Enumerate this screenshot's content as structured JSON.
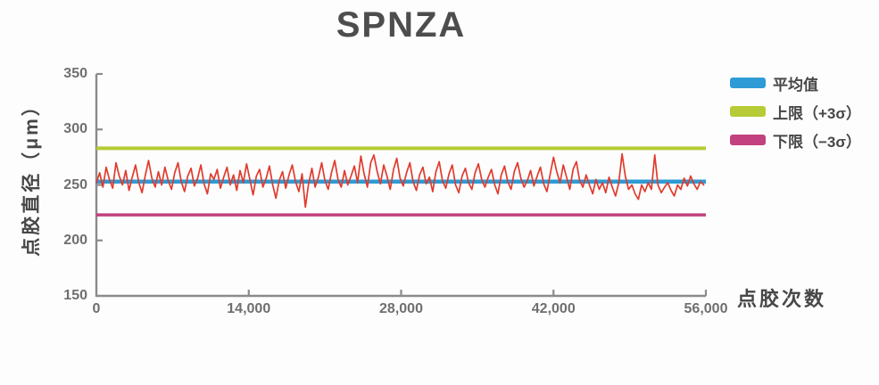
{
  "title": "SPNZA",
  "colors": {
    "mean_line": "#2d9bd5",
    "upper_line": "#b6cb35",
    "lower_line": "#c2417e",
    "data_line": "#e03b2d",
    "axis": "#8b8b8b",
    "tick_text": "#6f6f6f",
    "label_text": "#474747",
    "background": "#fdfdfd"
  },
  "legend": {
    "items": [
      {
        "label": "平均值",
        "color": "#2d9bd5"
      },
      {
        "label": "上限（+3σ）",
        "color": "#b6cb35"
      },
      {
        "label": "下限（−3σ）",
        "color": "#c2417e"
      }
    ]
  },
  "chart_data": {
    "type": "line",
    "title": "SPNZA",
    "ylabel": "点胶直径（μm）",
    "xlabel": "点胶次数",
    "ylim": [
      150,
      350
    ],
    "xlim": [
      0,
      56000
    ],
    "y_ticks": [
      150,
      200,
      250,
      300,
      350
    ],
    "y_tick_labels": [
      "150",
      "200",
      "250",
      "300",
      "350"
    ],
    "x_ticks": [
      0,
      14000,
      28000,
      42000,
      56000
    ],
    "x_tick_labels": [
      "0",
      "14,000",
      "28,000",
      "42,000",
      "56,000"
    ],
    "grid": false,
    "legend_position": "right",
    "reference_lines": [
      {
        "name": "平均值",
        "value": 253,
        "color": "#2d9bd5"
      },
      {
        "name": "上限（+3σ）",
        "value": 283,
        "color": "#b6cb35"
      },
      {
        "name": "下限（−3σ）",
        "value": 223,
        "color": "#c2417e"
      }
    ],
    "series": [
      {
        "name": "点胶直径",
        "color": "#e03b2d",
        "x_start": 0,
        "x_step": 300,
        "values": [
          252,
          261,
          248,
          266,
          255,
          247,
          270,
          258,
          250,
          263,
          245,
          257,
          268,
          252,
          243,
          259,
          272,
          256,
          248,
          262,
          250,
          266,
          254,
          246,
          261,
          270,
          253,
          244,
          258,
          265,
          249,
          256,
          268,
          251,
          242,
          260,
          255,
          264,
          247,
          257,
          266,
          250,
          259,
          245,
          263,
          252,
          269,
          255,
          241,
          258,
          264,
          248,
          256,
          267,
          250,
          238,
          254,
          262,
          247,
          259,
          268,
          253,
          244,
          260,
          230,
          251,
          265,
          248,
          257,
          270,
          254,
          246,
          261,
          272,
          255,
          248,
          263,
          250,
          258,
          267,
          252,
          276,
          260,
          248,
          270,
          277,
          262,
          251,
          268,
          258,
          246,
          264,
          274,
          256,
          249,
          261,
          270,
          253,
          245,
          259,
          266,
          251,
          257,
          244,
          262,
          271,
          254,
          247,
          260,
          268,
          250,
          243,
          258,
          265,
          252,
          246,
          261,
          269,
          255,
          248,
          257,
          264,
          250,
          242,
          259,
          267,
          253,
          246,
          262,
          270,
          256,
          248,
          254,
          263,
          249,
          258,
          266,
          251,
          244,
          260,
          275,
          262,
          252,
          268,
          257,
          246,
          264,
          271,
          254,
          248,
          259,
          250,
          242,
          255,
          246,
          252,
          243,
          257,
          248,
          240,
          252,
          278,
          258,
          246,
          250,
          242,
          237,
          250,
          244,
          252,
          246,
          277,
          250,
          243,
          248,
          252,
          245,
          240,
          250,
          246,
          256,
          249,
          258,
          251,
          246,
          253,
          250
        ]
      }
    ]
  }
}
